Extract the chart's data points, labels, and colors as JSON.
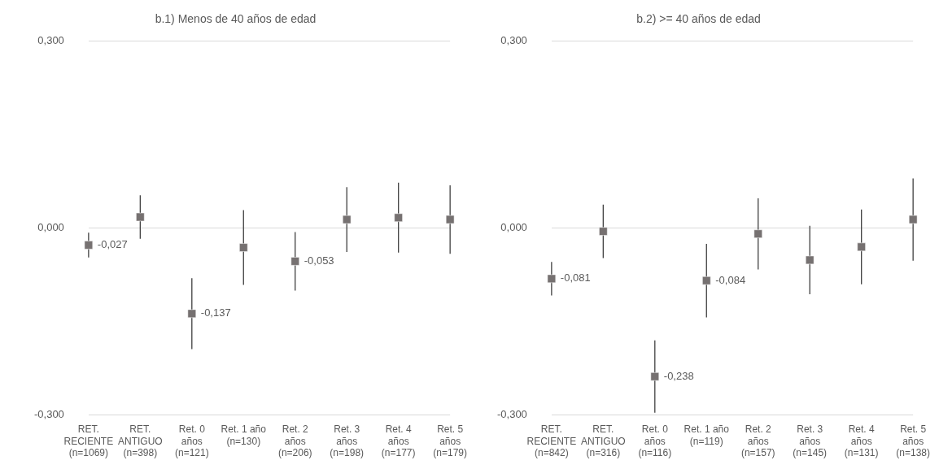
{
  "chart_data": [
    {
      "type": "scatter",
      "title": "b.1) Menos de 40 años de edad",
      "categories": [
        "RET. RECIENTE (n=1069)",
        "RET. ANTIGUO (n=398)",
        "Ret. 0 años (n=121)",
        "Ret. 1 año (n=130)",
        "Ret. 2 años (n=206)",
        "Ret. 3 años (n=198)",
        "Ret. 4 años (n=177)",
        "Ret. 5 años (n=179)"
      ],
      "values": [
        -0.027,
        0.018,
        -0.137,
        -0.031,
        -0.053,
        0.014,
        0.017,
        0.014
      ],
      "errors": [
        0.02,
        0.035,
        0.057,
        0.06,
        0.047,
        0.052,
        0.056,
        0.055
      ],
      "value_labels": [
        "-0,027",
        null,
        "-0,137",
        null,
        "-0,053",
        null,
        null,
        null
      ],
      "color": "#767171",
      "marker": "square",
      "ylim": [
        -0.3,
        0.3
      ],
      "yticks": [
        {
          "value": -0.3,
          "label": "-0,300"
        },
        {
          "value": 0,
          "label": "0,000"
        },
        {
          "value": 0.3,
          "label": "0,300"
        }
      ],
      "grid": "y",
      "legend": false
    },
    {
      "type": "scatter",
      "title": "b.2) >= 40 años de edad",
      "categories": [
        "RET. RECIENTE (n=842)",
        "RET. ANTIGUO (n=316)",
        "Ret. 0 años (n=116)",
        "Ret. 1 año (n=119)",
        "Ret. 2 años (n=157)",
        "Ret. 3 años (n=145)",
        "Ret. 4 años (n=131)",
        "Ret. 5 años (n=138)"
      ],
      "values": [
        -0.081,
        -0.005,
        -0.238,
        -0.084,
        -0.009,
        -0.051,
        -0.03,
        0.014
      ],
      "errors": [
        0.027,
        0.043,
        0.058,
        0.059,
        0.057,
        0.055,
        0.06,
        0.066
      ],
      "value_labels": [
        "-0,081",
        null,
        "-0,238",
        "-0,084",
        null,
        null,
        null,
        null
      ],
      "color": "#767171",
      "marker": "square",
      "ylim": [
        -0.3,
        0.3
      ],
      "yticks": [
        {
          "value": -0.3,
          "label": "-0,300"
        },
        {
          "value": 0,
          "label": "0,000"
        },
        {
          "value": 0.3,
          "label": "0,300"
        }
      ],
      "grid": "y",
      "legend": false
    }
  ]
}
